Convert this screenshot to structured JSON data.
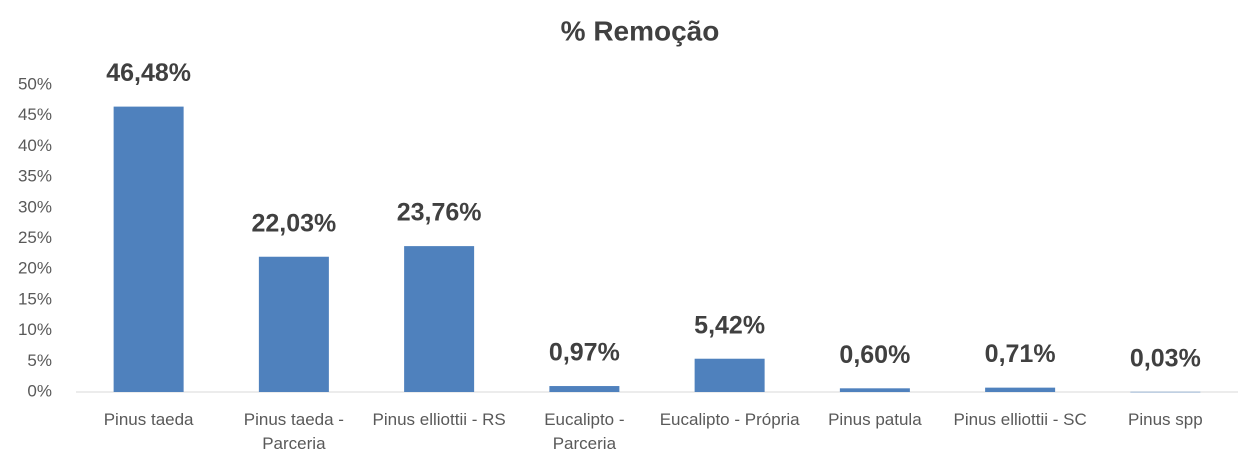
{
  "chart_data": {
    "type": "bar",
    "title": "% Remoção",
    "categories": [
      "Pinus taeda",
      "Pinus taeda - Parceria",
      "Pinus elliottii - RS",
      "Eucalipto - Parceria",
      "Eucalipto - Própria",
      "Pinus patula",
      "Pinus elliottii - SC",
      "Pinus spp"
    ],
    "values": [
      46.48,
      22.03,
      23.76,
      0.97,
      5.42,
      0.6,
      0.71,
      0.03
    ],
    "value_labels": [
      "46,48%",
      "22,03%",
      "23,76%",
      "0,97%",
      "5,42%",
      "0,60%",
      "0,71%",
      "0,03%"
    ],
    "color": "#4f81bd",
    "ylim": [
      0,
      50
    ],
    "yticks": [
      {
        "value": 0,
        "label": "0%"
      },
      {
        "value": 5,
        "label": "5%"
      },
      {
        "value": 10,
        "label": "10%"
      },
      {
        "value": 15,
        "label": "15%"
      },
      {
        "value": 20,
        "label": "20%"
      },
      {
        "value": 25,
        "label": "25%"
      },
      {
        "value": 30,
        "label": "30%"
      },
      {
        "value": 35,
        "label": "35%"
      },
      {
        "value": 40,
        "label": "40%"
      },
      {
        "value": 45,
        "label": "45%"
      },
      {
        "value": 50,
        "label": "50%"
      }
    ],
    "grid": false
  }
}
